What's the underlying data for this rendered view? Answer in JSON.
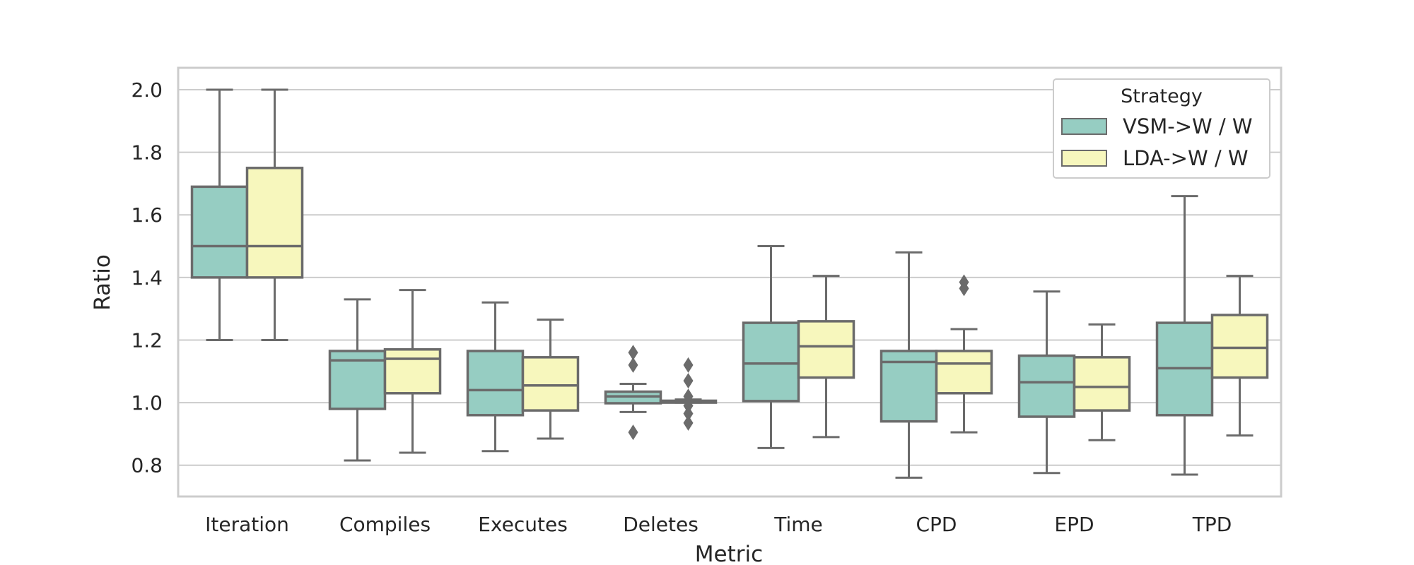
{
  "chart_data": {
    "type": "box",
    "xlabel": "Metric",
    "ylabel": "Ratio",
    "ylim": [
      0.7,
      2.07
    ],
    "yticks": [
      "0.8",
      "1.0",
      "1.2",
      "1.4",
      "1.6",
      "1.8",
      "2.0"
    ],
    "grid": "horizontal",
    "legend": {
      "title": "Strategy",
      "placement": "top-right"
    },
    "categories": [
      "Iteration",
      "Compiles",
      "Executes",
      "Deletes",
      "Time",
      "CPD",
      "EPD",
      "TPD"
    ],
    "series": [
      {
        "name": "VSM->W / W",
        "color": "#96cdc2",
        "boxes": [
          {
            "whislo": 1.2,
            "q1": 1.4,
            "med": 1.5,
            "q3": 1.69,
            "whishi": 2.0,
            "fliers": []
          },
          {
            "whislo": 0.815,
            "q1": 0.98,
            "med": 1.135,
            "q3": 1.165,
            "whishi": 1.33,
            "fliers": []
          },
          {
            "whislo": 0.845,
            "q1": 0.96,
            "med": 1.04,
            "q3": 1.165,
            "whishi": 1.32,
            "fliers": []
          },
          {
            "whislo": 0.97,
            "q1": 0.998,
            "med": 1.02,
            "q3": 1.035,
            "whishi": 1.06,
            "fliers": [
              1.16,
              1.12,
              0.905
            ]
          },
          {
            "whislo": 0.855,
            "q1": 1.005,
            "med": 1.125,
            "q3": 1.255,
            "whishi": 1.5,
            "fliers": []
          },
          {
            "whislo": 0.76,
            "q1": 0.94,
            "med": 1.13,
            "q3": 1.165,
            "whishi": 1.48,
            "fliers": []
          },
          {
            "whislo": 0.775,
            "q1": 0.955,
            "med": 1.065,
            "q3": 1.15,
            "whishi": 1.355,
            "fliers": []
          },
          {
            "whislo": 0.77,
            "q1": 0.96,
            "med": 1.11,
            "q3": 1.255,
            "whishi": 1.66,
            "fliers": []
          }
        ]
      },
      {
        "name": "LDA->W / W",
        "color": "#f7f7bd",
        "boxes": [
          {
            "whislo": 1.2,
            "q1": 1.4,
            "med": 1.5,
            "q3": 1.75,
            "whishi": 2.0,
            "fliers": []
          },
          {
            "whislo": 0.84,
            "q1": 1.03,
            "med": 1.14,
            "q3": 1.17,
            "whishi": 1.36,
            "fliers": []
          },
          {
            "whislo": 0.885,
            "q1": 0.975,
            "med": 1.055,
            "q3": 1.145,
            "whishi": 1.265,
            "fliers": []
          },
          {
            "whislo": 1.0,
            "q1": 1.0,
            "med": 1.002,
            "q3": 1.006,
            "whishi": 1.01,
            "fliers": [
              1.12,
              1.07,
              1.02,
              0.99,
              0.965,
              0.935
            ]
          },
          {
            "whislo": 0.89,
            "q1": 1.08,
            "med": 1.18,
            "q3": 1.26,
            "whishi": 1.405,
            "fliers": []
          },
          {
            "whislo": 0.905,
            "q1": 1.03,
            "med": 1.125,
            "q3": 1.165,
            "whishi": 1.235,
            "fliers": [
              1.385,
              1.365
            ]
          },
          {
            "whislo": 0.88,
            "q1": 0.975,
            "med": 1.05,
            "q3": 1.145,
            "whishi": 1.25,
            "fliers": []
          },
          {
            "whislo": 0.895,
            "q1": 1.08,
            "med": 1.175,
            "q3": 1.28,
            "whishi": 1.405,
            "fliers": []
          }
        ]
      }
    ],
    "edge_color": "#6b6b6b",
    "grid_color": "#cccccc"
  }
}
